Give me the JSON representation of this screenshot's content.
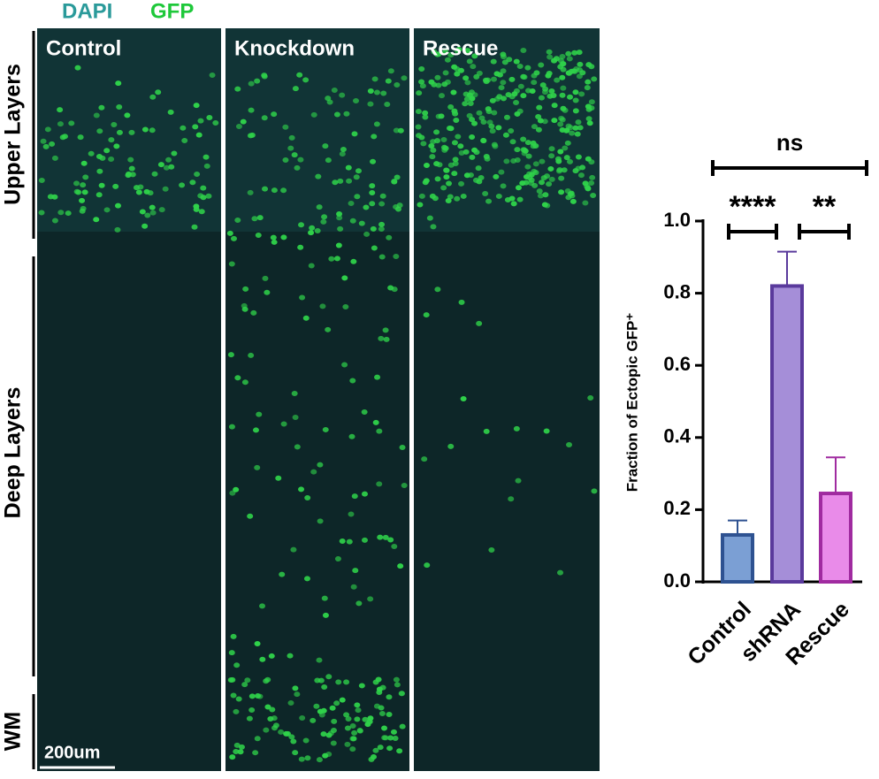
{
  "header": {
    "channels": [
      "DAPI",
      "GFP"
    ]
  },
  "panels": [
    "Control",
    "Knockdown",
    "Rescue"
  ],
  "layers": [
    "Upper Layers",
    "Deep Layers",
    "WM"
  ],
  "scale_bar": "200um",
  "chart_data": {
    "type": "bar",
    "ylabel": "Fraction of Ectopic GFP⁺",
    "categories": [
      "Control",
      "shRNA",
      "Rescue"
    ],
    "values": [
      0.13,
      0.82,
      0.245
    ],
    "errors": [
      0.04,
      0.095,
      0.1
    ],
    "colors": [
      "#7b9fd4",
      "#a58ed8",
      "#e98be9"
    ],
    "edge_colors": [
      "#2e5291",
      "#5a3a9c",
      "#a02ba0"
    ],
    "ylim": [
      0,
      1
    ],
    "yticks": [
      {
        "value": 0,
        "label": "0.0"
      },
      0.2,
      0.4,
      0.6,
      0.8,
      {
        "value": 1,
        "label": "1.0"
      }
    ],
    "annotations": [
      "ns",
      "****",
      "**"
    ]
  }
}
